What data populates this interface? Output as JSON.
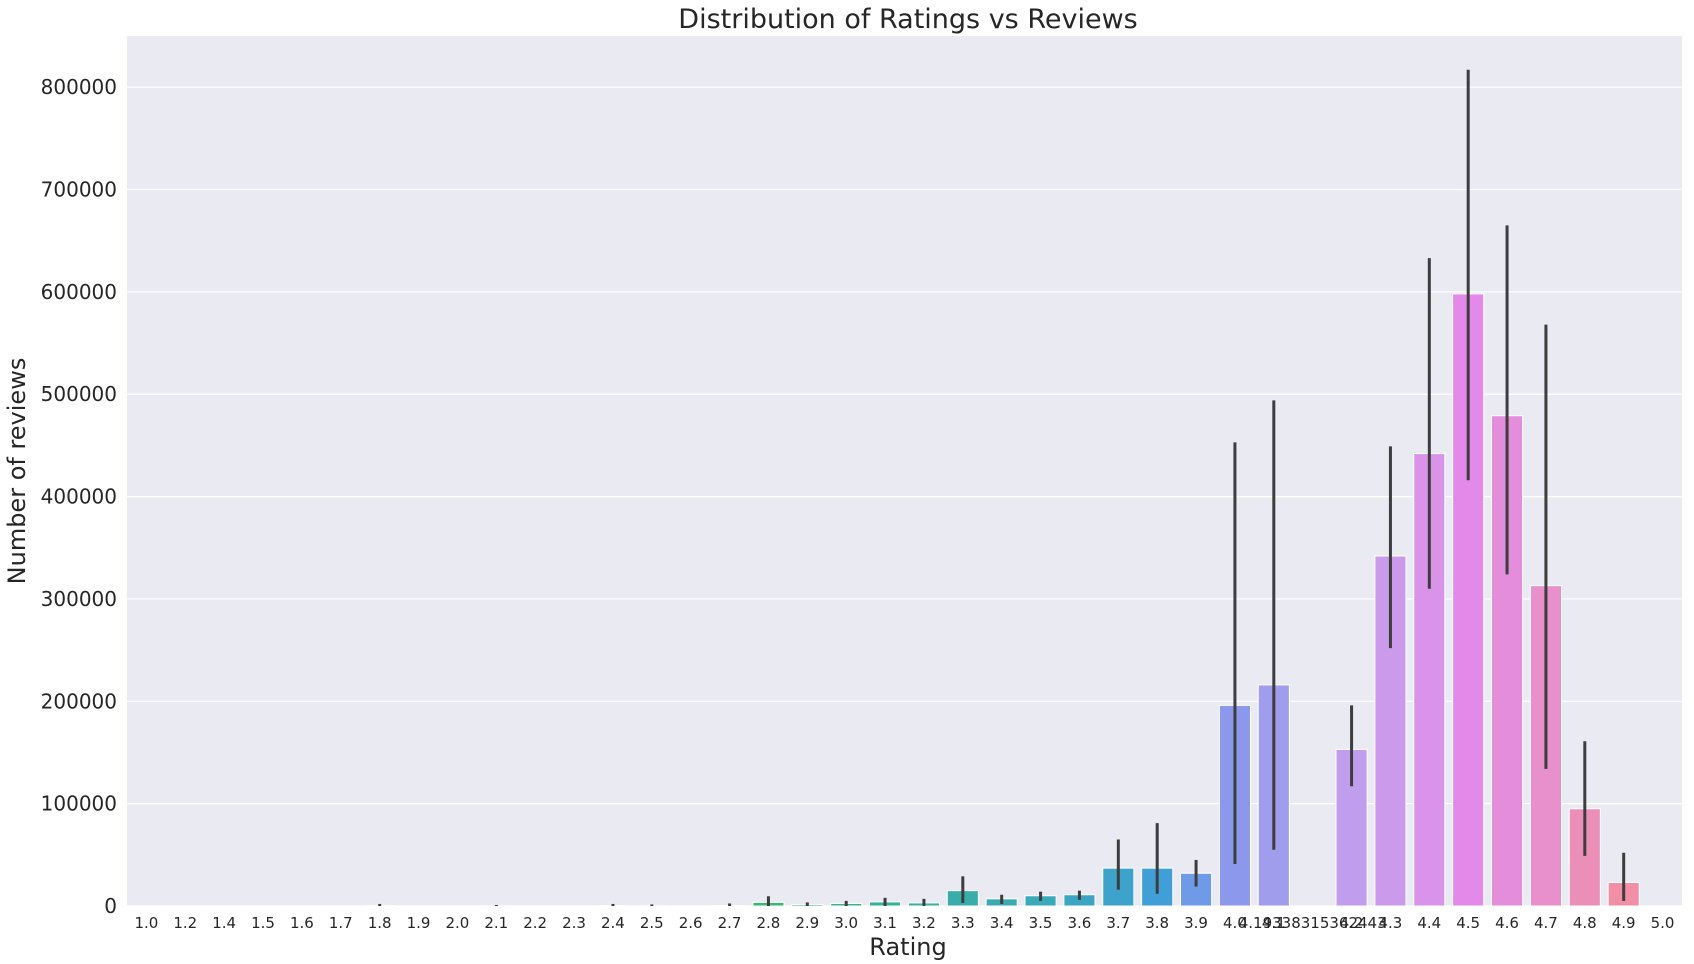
{
  "chart_data": {
    "type": "bar",
    "title": "Distribution of Ratings vs Reviews",
    "xlabel": "Rating",
    "ylabel": "Number of reviews",
    "ylim": [
      0,
      850000
    ],
    "yticks": [
      0,
      100000,
      200000,
      300000,
      400000,
      500000,
      600000,
      700000,
      800000
    ],
    "grid": true,
    "categories": [
      "1.0",
      "1.2",
      "1.4",
      "1.5",
      "1.6",
      "1.7",
      "1.8",
      "1.9",
      "2.0",
      "2.1",
      "2.2",
      "2.3",
      "2.4",
      "2.5",
      "2.6",
      "2.7",
      "2.8",
      "2.9",
      "3.0",
      "3.1",
      "3.2",
      "3.3",
      "3.4",
      "3.5",
      "3.6",
      "3.7",
      "3.8",
      "3.9",
      "4.0",
      "4.1",
      "4.19338315362443",
      "4.2",
      "4.3",
      "4.4",
      "4.5",
      "4.6",
      "4.7",
      "4.8",
      "4.9",
      "5.0"
    ],
    "values": [
      0,
      0,
      0,
      0,
      0,
      0,
      500,
      0,
      0,
      200,
      0,
      0,
      400,
      300,
      0,
      400,
      3500,
      1500,
      2500,
      4000,
      3000,
      15000,
      7000,
      10000,
      11000,
      37000,
      37000,
      32000,
      196000,
      216000,
      0,
      153000,
      342000,
      442000,
      598000,
      479000,
      313000,
      95000,
      23000,
      0
    ],
    "error_low": [
      0,
      0,
      0,
      0,
      0,
      0,
      0,
      0,
      0,
      0,
      0,
      0,
      0,
      0,
      0,
      0,
      0,
      0,
      0,
      0,
      0,
      3000,
      2000,
      5000,
      6000,
      16000,
      12000,
      19000,
      41000,
      55000,
      0,
      117000,
      252000,
      310000,
      416000,
      324000,
      134000,
      49000,
      5000,
      0
    ],
    "error_high": [
      0,
      0,
      0,
      0,
      0,
      0,
      2000,
      0,
      0,
      1000,
      0,
      0,
      2000,
      1500,
      0,
      2500,
      9500,
      3500,
      5000,
      8000,
      7000,
      29000,
      11000,
      14000,
      15000,
      65000,
      81000,
      45000,
      453000,
      494000,
      0,
      196000,
      449000,
      633000,
      817000,
      665000,
      568000,
      161000,
      52000,
      0
    ],
    "colors": [
      "#f77189",
      "#f7738a",
      "#f77586",
      "#f77a66",
      "#f77f43",
      "#f48634",
      "#e38e32",
      "#d59532",
      "#c89b32",
      "#bba032",
      "#ada432",
      "#a0a832",
      "#93ab32",
      "#84ae32",
      "#72b132",
      "#5cb532",
      "#36b873",
      "#36b585",
      "#36b38f",
      "#37b199",
      "#38afa2",
      "#38adaa",
      "#39abb1",
      "#3aa9b8",
      "#3ba6c1",
      "#3da3ca",
      "#3f9fd6",
      "#6e9ae8",
      "#8c98ec",
      "#a09ded",
      "#b29ded",
      "#c09eed",
      "#cc9aea",
      "#d993e9",
      "#e289e9",
      "#e38ddb",
      "#e790cb",
      "#ec8fb8",
      "#f08fa5",
      "#f77189"
    ]
  }
}
